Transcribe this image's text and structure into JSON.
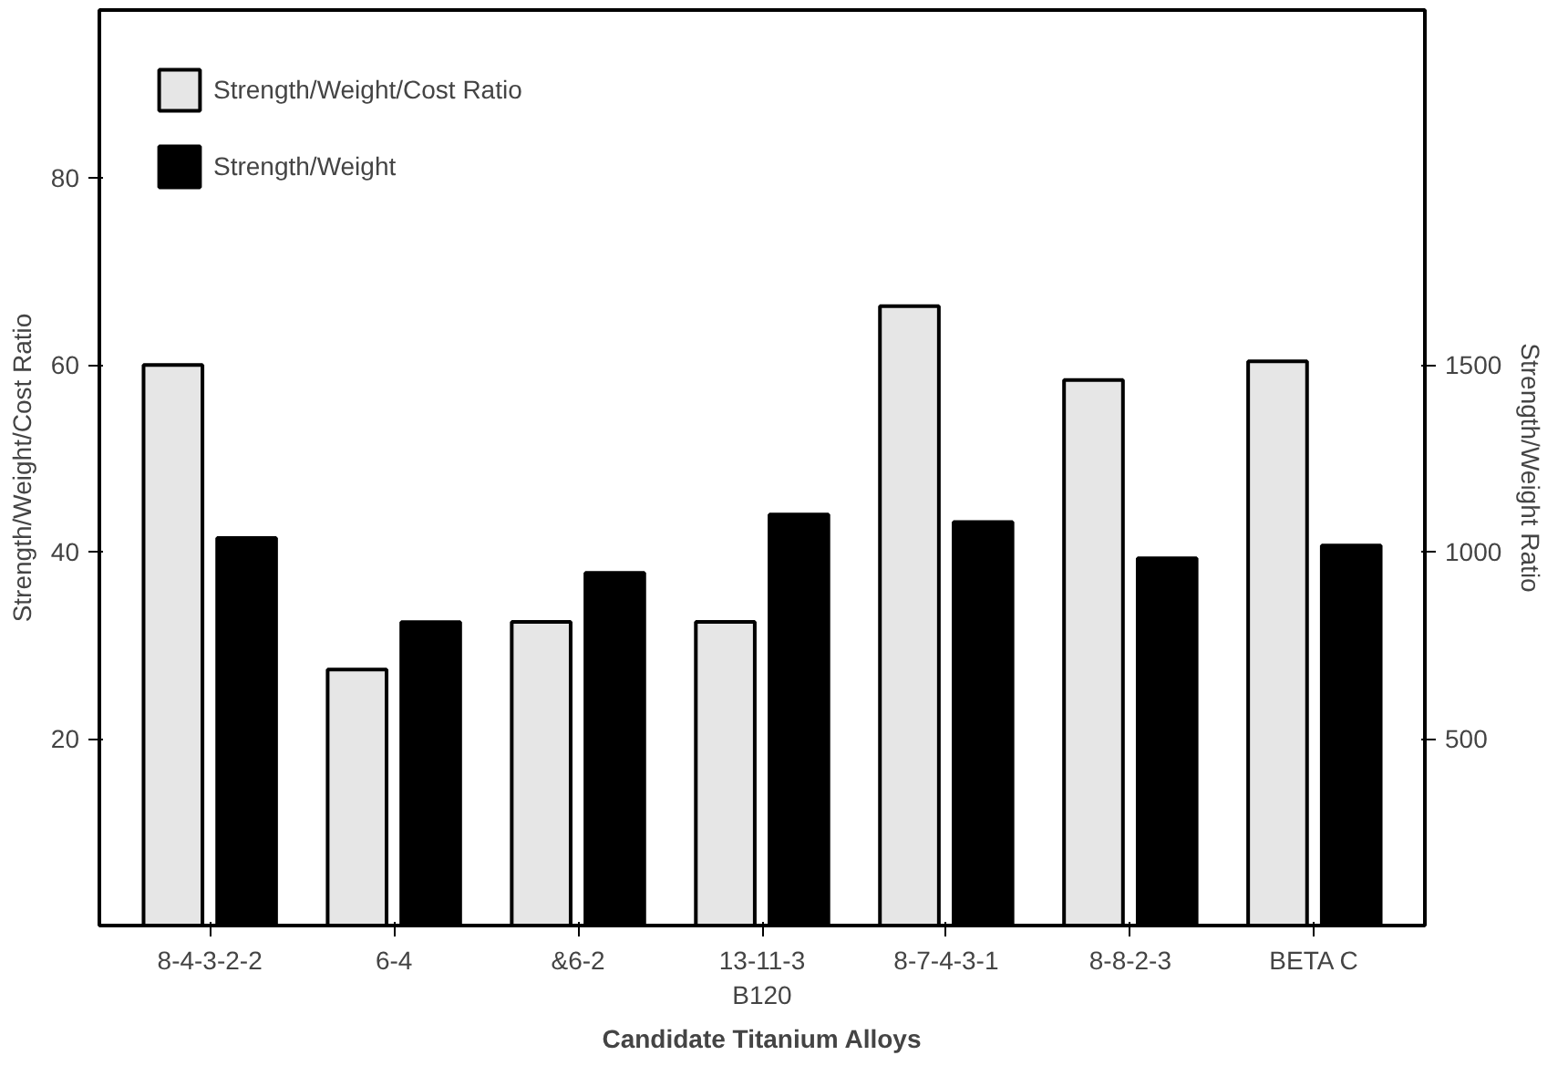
{
  "chart_data": {
    "type": "bar",
    "xlabel": "Candidate Titanium Alloys",
    "ylabel": "Strength/Weight/Cost Ratio",
    "y2label": "Strength/Weight Ratio",
    "categories": [
      "8-4-3-2-2",
      "6-4",
      "&6-2",
      "13-11-3\nB120",
      "8-7-4-3-1",
      "8-8-2-3",
      "BETA C"
    ],
    "series": [
      {
        "name": "Strength/Weight/Cost Ratio",
        "color": "#e6e6e6",
        "values": [
          60,
          27.4,
          32.5,
          32.5,
          66.3,
          58.4,
          60.4
        ]
      },
      {
        "name": "Strength/Weight",
        "color": "#000000",
        "axis": "y2",
        "values": [
          1037,
          812,
          944,
          1100,
          1080,
          983,
          1017
        ]
      }
    ],
    "ylim": [
      0,
      98
    ],
    "yticks": [
      20,
      40,
      60,
      80
    ],
    "y2lim": [
      0,
      2450
    ],
    "y2ticks": [
      500,
      1000,
      1500
    ],
    "grid": false,
    "legend": "top left"
  }
}
